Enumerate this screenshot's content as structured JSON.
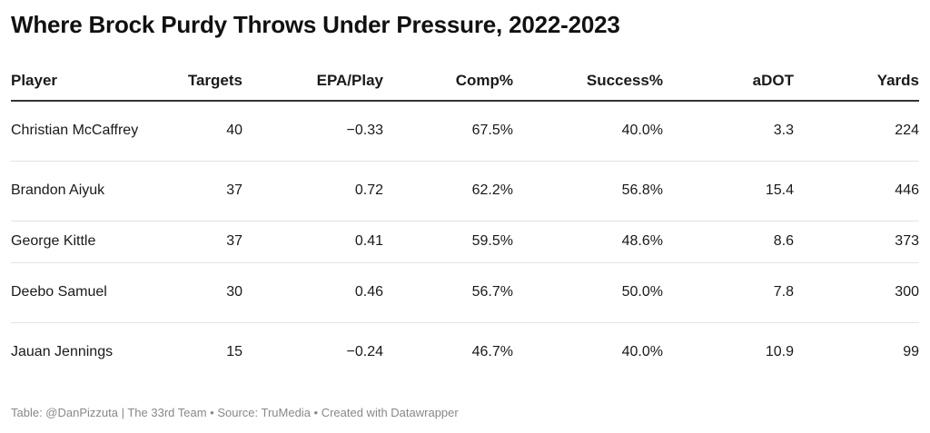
{
  "title": "Where Brock Purdy Throws Under Pressure, 2022-2023",
  "footer": "Table: @DanPizzuta | The 33rd Team • Source: TruMedia • Created with Datawrapper",
  "chart_data": {
    "type": "table",
    "columns": [
      "Player",
      "Targets",
      "EPA/Play",
      "Comp%",
      "Success%",
      "aDOT",
      "Yards"
    ],
    "rows": [
      [
        "Christian McCaffrey",
        "40",
        "−0.33",
        "67.5%",
        "40.0%",
        "3.3",
        "224"
      ],
      [
        "Brandon Aiyuk",
        "37",
        "0.72",
        "62.2%",
        "56.8%",
        "15.4",
        "446"
      ],
      [
        "George Kittle",
        "37",
        "0.41",
        "59.5%",
        "48.6%",
        "8.6",
        "373"
      ],
      [
        "Deebo Samuel",
        "30",
        "0.46",
        "56.7%",
        "50.0%",
        "7.8",
        "300"
      ],
      [
        "Jauan Jennings",
        "15",
        "−0.24",
        "46.7%",
        "40.0%",
        "10.9",
        "99"
      ]
    ]
  }
}
